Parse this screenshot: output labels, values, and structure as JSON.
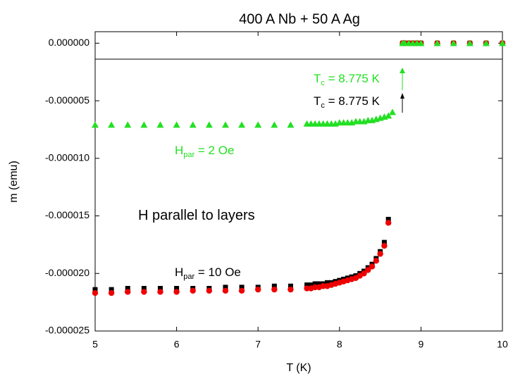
{
  "chart_data": {
    "type": "scatter",
    "title": "400 A Nb + 50 A Ag",
    "x_label": "T (K)",
    "y_label": "m (emu)",
    "xlim": [
      5,
      10
    ],
    "xticks": [
      5,
      6,
      7,
      8,
      9,
      10
    ],
    "ylim": [
      -2.5e-05,
      1e-06
    ],
    "yticks": [
      {
        "value": -2.5e-05,
        "label": "-0.000025"
      },
      {
        "value": -2e-05,
        "label": "-0.000020"
      },
      {
        "value": -1.5e-05,
        "label": "-0.000015"
      },
      {
        "value": -1e-05,
        "label": "-0.000010"
      },
      {
        "value": -5e-06,
        "label": "-0.000005"
      },
      {
        "value": 0,
        "label": "0.000000"
      }
    ],
    "series": [
      {
        "color": "#000000",
        "marker": "square",
        "x": [
          5,
          5.2,
          5.4,
          5.6,
          5.8,
          6,
          6.2,
          6.4,
          6.6,
          6.8,
          7,
          7.2,
          7.4,
          7.6,
          7.65,
          7.7,
          7.75,
          7.8,
          7.85,
          7.9,
          7.95,
          8,
          8.05,
          8.1,
          8.15,
          8.2,
          8.25,
          8.3,
          8.35,
          8.4,
          8.45,
          8.5,
          8.55,
          8.6,
          8.775,
          8.8,
          8.85,
          8.9,
          8.95,
          9,
          9.2,
          9.4,
          9.6,
          9.8,
          10
        ],
        "values": [
          -2.14e-05,
          -2.14e-05,
          -2.13e-05,
          -2.13e-05,
          -2.13e-05,
          -2.13e-05,
          -2.13e-05,
          -2.13e-05,
          -2.12e-05,
          -2.12e-05,
          -2.12e-05,
          -2.11e-05,
          -2.11e-05,
          -2.1e-05,
          -2.1e-05,
          -2.09e-05,
          -2.09e-05,
          -2.09e-05,
          -2.08e-05,
          -2.08e-05,
          -2.07e-05,
          -2.06e-05,
          -2.05e-05,
          -2.04e-05,
          -2.03e-05,
          -2.02e-05,
          -2e-05,
          -1.98e-05,
          -1.95e-05,
          -1.92e-05,
          -1.87e-05,
          -1.81e-05,
          -1.73e-05,
          -1.53e-05,
          0,
          0,
          0,
          0,
          0,
          0,
          0,
          0,
          0,
          0,
          0
        ]
      },
      {
        "color": "#ee0000",
        "marker": "circle",
        "x": [
          5,
          5.2,
          5.4,
          5.6,
          5.8,
          6,
          6.2,
          6.4,
          6.6,
          6.8,
          7,
          7.2,
          7.4,
          7.6,
          7.65,
          7.7,
          7.75,
          7.8,
          7.85,
          7.9,
          7.95,
          8,
          8.05,
          8.1,
          8.15,
          8.2,
          8.25,
          8.3,
          8.35,
          8.4,
          8.45,
          8.5,
          8.55,
          8.6,
          8.775,
          8.8,
          8.85,
          8.9,
          8.95,
          9,
          9.2,
          9.4,
          9.6,
          9.8,
          10
        ],
        "values": [
          -2.17e-05,
          -2.17e-05,
          -2.16e-05,
          -2.16e-05,
          -2.16e-05,
          -2.16e-05,
          -2.15e-05,
          -2.15e-05,
          -2.15e-05,
          -2.15e-05,
          -2.14e-05,
          -2.14e-05,
          -2.14e-05,
          -2.13e-05,
          -2.13e-05,
          -2.12e-05,
          -2.12e-05,
          -2.11e-05,
          -2.11e-05,
          -2.1e-05,
          -2.09e-05,
          -2.08e-05,
          -2.07e-05,
          -2.06e-05,
          -2.05e-05,
          -2.04e-05,
          -2.02e-05,
          -2e-05,
          -1.97e-05,
          -1.94e-05,
          -1.89e-05,
          -1.83e-05,
          -1.76e-05,
          -1.56e-05,
          0,
          0,
          0,
          0,
          0,
          0,
          0,
          0,
          0,
          0,
          0
        ]
      },
      {
        "color": "#22e022",
        "marker": "triangle",
        "x": [
          5,
          5.2,
          5.4,
          5.6,
          5.8,
          6,
          6.2,
          6.4,
          6.6,
          6.8,
          7,
          7.2,
          7.4,
          7.6,
          7.65,
          7.7,
          7.75,
          7.8,
          7.85,
          7.9,
          7.95,
          8,
          8.05,
          8.1,
          8.15,
          8.2,
          8.25,
          8.3,
          8.35,
          8.4,
          8.45,
          8.5,
          8.55,
          8.6,
          8.65,
          8.775,
          8.8,
          8.85,
          8.9,
          8.95,
          9,
          9.2,
          9.4,
          9.6,
          9.8,
          10
        ],
        "values": [
          -7.1e-06,
          -7.1e-06,
          -7.1e-06,
          -7.1e-06,
          -7.1e-06,
          -7.1e-06,
          -7.1e-06,
          -7.1e-06,
          -7.1e-06,
          -7.1e-06,
          -7.1e-06,
          -7.1e-06,
          -7.1e-06,
          -7e-06,
          -7e-06,
          -7e-06,
          -7e-06,
          -7e-06,
          -7e-06,
          -7e-06,
          -7e-06,
          -6.9e-06,
          -6.9e-06,
          -6.9e-06,
          -6.9e-06,
          -6.8e-06,
          -6.8e-06,
          -6.8e-06,
          -6.7e-06,
          -6.7e-06,
          -6.6e-06,
          -6.5e-06,
          -6.4e-06,
          -6.3e-06,
          -6e-06,
          0,
          0,
          0,
          0,
          0,
          0,
          0,
          0,
          0,
          0,
          0
        ]
      }
    ],
    "annotations": [
      {
        "text": "T",
        "sub": "c",
        "rest": " = 8.775 K",
        "color": "#22e022"
      },
      {
        "text": "T",
        "sub": "c",
        "rest": " = 8.775 K",
        "color": "#000000"
      },
      {
        "text": "H",
        "sub": "par",
        "rest": " = 2 Oe",
        "color": "#22e022"
      },
      {
        "text": "H parallel to layers",
        "color": "#000000"
      },
      {
        "text": "H",
        "sub": "par",
        "rest": " = 10 Oe",
        "color": "#000000"
      }
    ]
  }
}
